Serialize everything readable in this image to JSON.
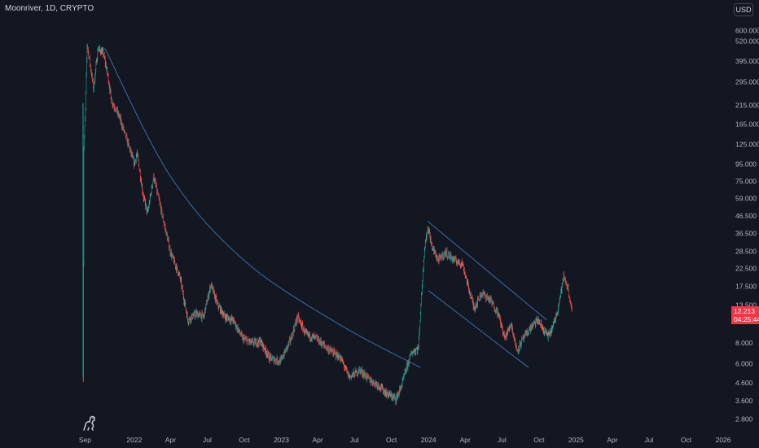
{
  "header": {
    "title": "Moonriver, 1D, CRYPTO",
    "currency": "USD"
  },
  "price_tag": {
    "price": "12.213",
    "countdown": "04:25:44",
    "color": "#f23645"
  },
  "colors": {
    "background": "#131722",
    "up": "#26a69a",
    "down": "#ef5350",
    "trendline": "#3f6b9e",
    "axis_text": "#b2b5be"
  },
  "logo_icon": "dinosaur-icon",
  "chart_data": {
    "type": "candlestick",
    "y_scale": "log",
    "ylim": [
      2.4,
      700
    ],
    "y_ticks": [
      "600.000",
      "520.000",
      "395.000",
      "295.000",
      "215.000",
      "165.000",
      "125.000",
      "95.000",
      "75.000",
      "59.000",
      "46.500",
      "36.500",
      "28.500",
      "22.500",
      "17.500",
      "13.500",
      "8.000",
      "6.000",
      "4.600",
      "3.600",
      "2.800"
    ],
    "x_ticks": [
      "Sep",
      "2022",
      "Apr",
      "Jul",
      "Oct",
      "2023",
      "Apr",
      "Jul",
      "Oct",
      "2024",
      "Apr",
      "Jul",
      "Oct",
      "2025",
      "Apr",
      "Jul",
      "Oct",
      "2026"
    ],
    "x_range": [
      "2021-08-25",
      "2026-01-15"
    ],
    "price_path": [
      [
        "2021-08-27",
        5.0
      ],
      [
        "2021-08-29",
        120
      ],
      [
        "2021-09-02",
        200
      ],
      [
        "2021-09-06",
        500
      ],
      [
        "2021-09-12",
        400
      ],
      [
        "2021-09-22",
        270
      ],
      [
        "2021-10-03",
        470
      ],
      [
        "2021-10-16",
        440
      ],
      [
        "2021-10-28",
        320
      ],
      [
        "2021-11-05",
        230
      ],
      [
        "2021-11-24",
        185
      ],
      [
        "2021-12-15",
        130
      ],
      [
        "2022-01-01",
        95
      ],
      [
        "2022-01-08",
        110
      ],
      [
        "2022-01-24",
        60
      ],
      [
        "2022-02-03",
        48
      ],
      [
        "2022-02-18",
        80
      ],
      [
        "2022-03-13",
        45
      ],
      [
        "2022-04-01",
        28
      ],
      [
        "2022-04-24",
        20
      ],
      [
        "2022-05-14",
        11
      ],
      [
        "2022-06-03",
        12
      ],
      [
        "2022-06-22",
        11.5
      ],
      [
        "2022-07-10",
        18
      ],
      [
        "2022-07-27",
        13.5
      ],
      [
        "2022-08-14",
        11.5
      ],
      [
        "2022-09-03",
        11
      ],
      [
        "2022-09-27",
        8.5
      ],
      [
        "2022-10-20",
        8.0
      ],
      [
        "2022-11-10",
        8.2
      ],
      [
        "2022-12-03",
        6.5
      ],
      [
        "2022-12-30",
        6.2
      ],
      [
        "2023-01-25",
        8.5
      ],
      [
        "2023-02-10",
        11.5
      ],
      [
        "2023-03-03",
        9.0
      ],
      [
        "2023-03-29",
        8.5
      ],
      [
        "2023-04-23",
        7.5
      ],
      [
        "2023-05-28",
        6.5
      ],
      [
        "2023-06-18",
        5.0
      ],
      [
        "2023-07-15",
        5.5
      ],
      [
        "2023-08-08",
        4.8
      ],
      [
        "2023-08-28",
        4.5
      ],
      [
        "2023-09-18",
        4.0
      ],
      [
        "2023-10-12",
        3.7
      ],
      [
        "2023-10-24",
        4.3
      ],
      [
        "2023-11-06",
        5.5
      ],
      [
        "2023-11-20",
        7.0
      ],
      [
        "2023-12-07",
        7.5
      ],
      [
        "2023-12-14",
        15
      ],
      [
        "2023-12-22",
        30
      ],
      [
        "2023-12-31",
        40
      ],
      [
        "2024-01-08",
        31
      ],
      [
        "2024-01-25",
        25
      ],
      [
        "2024-02-12",
        28
      ],
      [
        "2024-02-27",
        26
      ],
      [
        "2024-03-07",
        25
      ],
      [
        "2024-03-25",
        24
      ],
      [
        "2024-04-07",
        18
      ],
      [
        "2024-04-23",
        13
      ],
      [
        "2024-05-12",
        16
      ],
      [
        "2024-06-02",
        14.5
      ],
      [
        "2024-06-22",
        12
      ],
      [
        "2024-07-08",
        8.5
      ],
      [
        "2024-07-24",
        10.5
      ],
      [
        "2024-08-07",
        7.2
      ],
      [
        "2024-08-23",
        8.5
      ],
      [
        "2024-09-12",
        10
      ],
      [
        "2024-09-28",
        11
      ],
      [
        "2024-10-13",
        9.5
      ],
      [
        "2024-10-25",
        8.8
      ],
      [
        "2024-11-04",
        10
      ],
      [
        "2024-11-14",
        12
      ],
      [
        "2024-11-24",
        16
      ],
      [
        "2024-12-01",
        20
      ],
      [
        "2024-12-05",
        19
      ],
      [
        "2024-12-12",
        17
      ],
      [
        "2024-12-18",
        14
      ],
      [
        "2024-12-22",
        12.2
      ]
    ],
    "drawings": [
      {
        "type": "curve",
        "points": [
          [
            "2021-10-20",
            470
          ],
          [
            "2022-04-01",
            80
          ],
          [
            "2022-10-01",
            25
          ],
          [
            "2023-05-20",
            10.5
          ],
          [
            "2023-12-12",
            5.7
          ]
        ]
      },
      {
        "type": "line",
        "points": [
          [
            "2023-12-30",
            43
          ],
          [
            "2024-10-20",
            11
          ]
        ]
      },
      {
        "type": "line",
        "points": [
          [
            "2024-01-01",
            16.5
          ],
          [
            "2024-09-05",
            5.7
          ]
        ]
      }
    ]
  }
}
